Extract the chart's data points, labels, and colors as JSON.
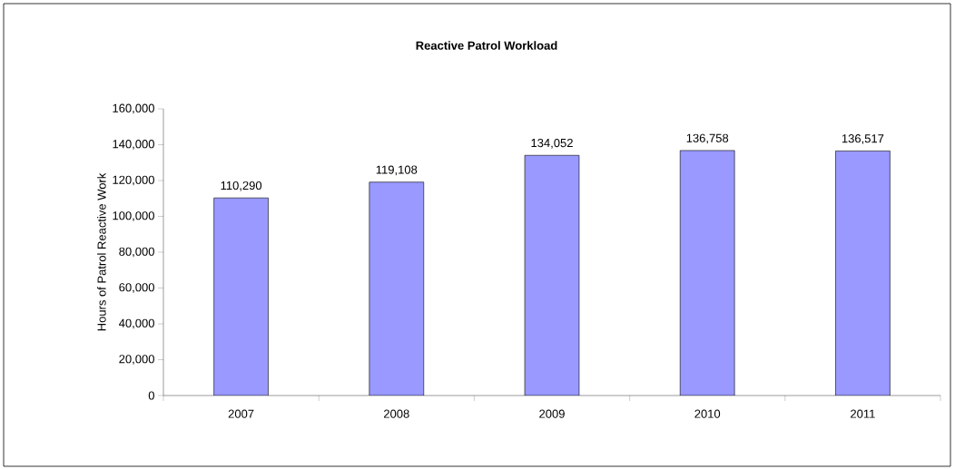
{
  "chart_data": {
    "type": "bar",
    "title": "Reactive Patrol Workload",
    "ylabel": "Hours of Patrol Reactive Work",
    "categories": [
      "2007",
      "2008",
      "2009",
      "2010",
      "2011"
    ],
    "values": [
      110290,
      119108,
      134052,
      136758,
      136517
    ],
    "value_labels": [
      "110,290",
      "119,108",
      "134,052",
      "136,758",
      "136,517"
    ],
    "color": "#9999ff",
    "ylim": [
      0,
      160000
    ],
    "yticks": [
      {
        "value": 0,
        "label": "0"
      },
      {
        "value": 20000,
        "label": "20,000"
      },
      {
        "value": 40000,
        "label": "40,000"
      },
      {
        "value": 60000,
        "label": "60,000"
      },
      {
        "value": 80000,
        "label": "80,000"
      },
      {
        "value": 100000,
        "label": "100,000"
      },
      {
        "value": 120000,
        "label": "120,000"
      },
      {
        "value": 140000,
        "label": "140,000"
      },
      {
        "value": 160000,
        "label": "160,000"
      }
    ]
  }
}
